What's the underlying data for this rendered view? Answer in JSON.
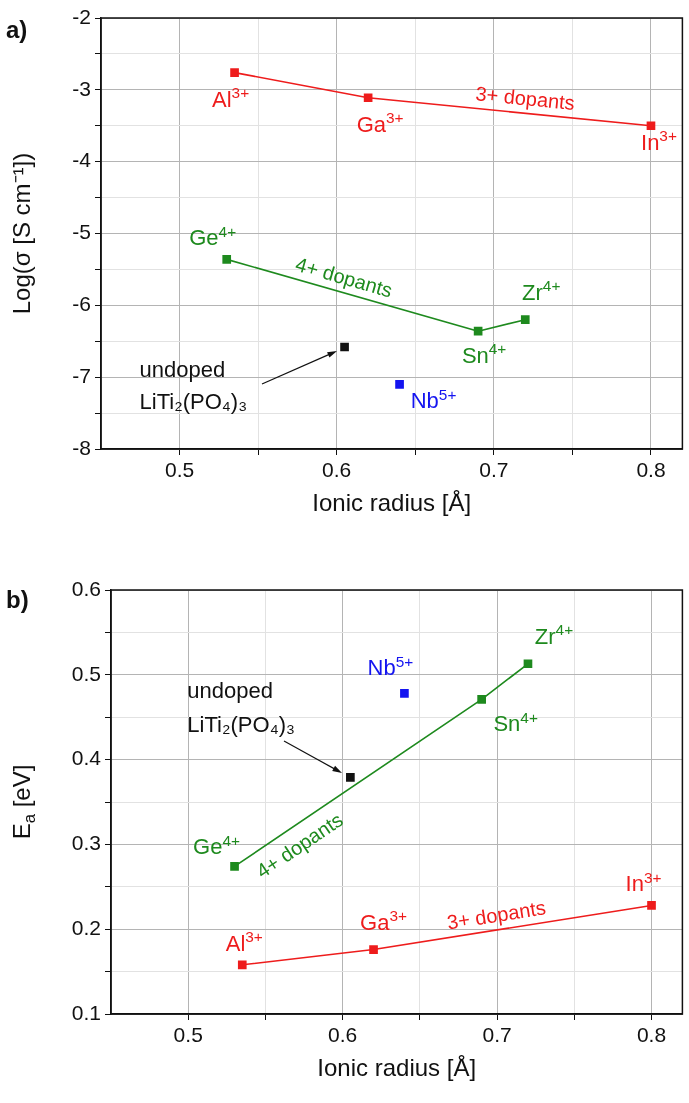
{
  "chart_data": [
    {
      "type": "line",
      "title": "a)",
      "xlabel": "Ionic radius [Å]",
      "ylabel": "Log(σ [S cm⁻¹])",
      "xlim": [
        0.45,
        0.82
      ],
      "ylim": [
        -8,
        -2
      ],
      "xticks": [
        0.5,
        {
          "value": 0.55,
          "label": null
        },
        0.6,
        {
          "value": 0.65,
          "label": null
        },
        0.7,
        {
          "value": 0.75,
          "label": null
        },
        0.8
      ],
      "yticks": [
        -8,
        {
          "value": -7.5,
          "label": null
        },
        -7,
        {
          "value": -6.5,
          "label": null
        },
        -6,
        {
          "value": -5.5,
          "label": null
        },
        -5,
        {
          "value": -4.5,
          "label": null
        },
        -4,
        {
          "value": -3.5,
          "label": null
        },
        -3,
        {
          "value": -2.5,
          "label": null
        },
        -2
      ],
      "grid": true,
      "marker": "square",
      "series": [
        {
          "name": "3+ dopants",
          "color": "#ee1c1c",
          "x": [
            0.535,
            0.62,
            0.8
          ],
          "values": [
            -2.76,
            -3.11,
            -3.5
          ]
        },
        {
          "name": "4+ dopants",
          "color": "#1e8a1e",
          "x": [
            0.53,
            0.69,
            0.72
          ],
          "values": [
            -5.36,
            -6.36,
            -6.2
          ]
        },
        {
          "name": "undoped LiTi₂(PO₄)₃",
          "type": "scatter",
          "color": "#111111",
          "x": [
            0.605
          ],
          "values": [
            -6.58
          ]
        },
        {
          "type": "scatter",
          "color": "#1414f0",
          "x": [
            0.64
          ],
          "values": [
            -7.1
          ]
        }
      ],
      "annotations": [
        {
          "text": "Al$^{3+}$",
          "x": 0.535,
          "y": -2.76
        },
        {
          "text": "Ga$^{3+}$",
          "x": 0.62,
          "y": -3.11
        },
        {
          "text": "In$^{3+}$",
          "x": 0.8,
          "y": -3.5
        },
        {
          "text": "Ge$^{4+}$",
          "x": 0.53,
          "y": -5.36
        },
        {
          "text": "Sn$^{4+}$",
          "x": 0.69,
          "y": -6.36
        },
        {
          "text": "Zr$^{4+}$",
          "x": 0.72,
          "y": -6.2
        },
        {
          "text": "Nb$^{5+}$",
          "x": 0.64,
          "y": -7.1
        }
      ]
    },
    {
      "type": "line",
      "title": "b)",
      "xlabel": "Ionic radius [Å]",
      "ylabel": "E$_{a}$ [eV]",
      "xlim": [
        0.45,
        0.82
      ],
      "ylim": [
        0.1,
        0.6
      ],
      "xticks": [
        0.5,
        {
          "value": 0.55,
          "label": null
        },
        0.6,
        {
          "value": 0.65,
          "label": null
        },
        0.7,
        {
          "value": 0.75,
          "label": null
        },
        0.8
      ],
      "yticks": [
        0.1,
        {
          "value": 0.15,
          "label": null
        },
        0.2,
        {
          "value": 0.25,
          "label": null
        },
        0.3,
        {
          "value": 0.35,
          "label": null
        },
        0.4,
        {
          "value": 0.45,
          "label": null
        },
        0.5,
        {
          "value": 0.55,
          "label": null
        },
        0.6
      ],
      "grid": true,
      "marker": "square",
      "series": [
        {
          "name": "3+ dopants",
          "color": "#ee1c1c",
          "x": [
            0.535,
            0.62,
            0.8
          ],
          "values": [
            0.158,
            0.176,
            0.228
          ]
        },
        {
          "name": "4+ dopants",
          "color": "#1e8a1e",
          "x": [
            0.53,
            0.69,
            0.72
          ],
          "values": [
            0.274,
            0.471,
            0.513
          ]
        },
        {
          "name": "undoped LiTi₂(PO₄)₃",
          "type": "scatter",
          "color": "#111111",
          "x": [
            0.605
          ],
          "values": [
            0.379
          ]
        },
        {
          "type": "scatter",
          "color": "#1414f0",
          "x": [
            0.64
          ],
          "values": [
            0.478
          ]
        }
      ],
      "annotations": [
        {
          "text": "Al$^{3+}$",
          "x": 0.535,
          "y": 0.158
        },
        {
          "text": "Ga$^{3+}$",
          "x": 0.62,
          "y": 0.176
        },
        {
          "text": "In$^{3+}$",
          "x": 0.8,
          "y": 0.228
        },
        {
          "text": "Ge$^{4+}$",
          "x": 0.53,
          "y": 0.274
        },
        {
          "text": "Sn$^{4+}$",
          "x": 0.69,
          "y": 0.471
        },
        {
          "text": "Zr$^{4+}$",
          "x": 0.72,
          "y": 0.513
        },
        {
          "text": "Nb$^{5+}$",
          "x": 0.64,
          "y": 0.478
        }
      ]
    }
  ]
}
